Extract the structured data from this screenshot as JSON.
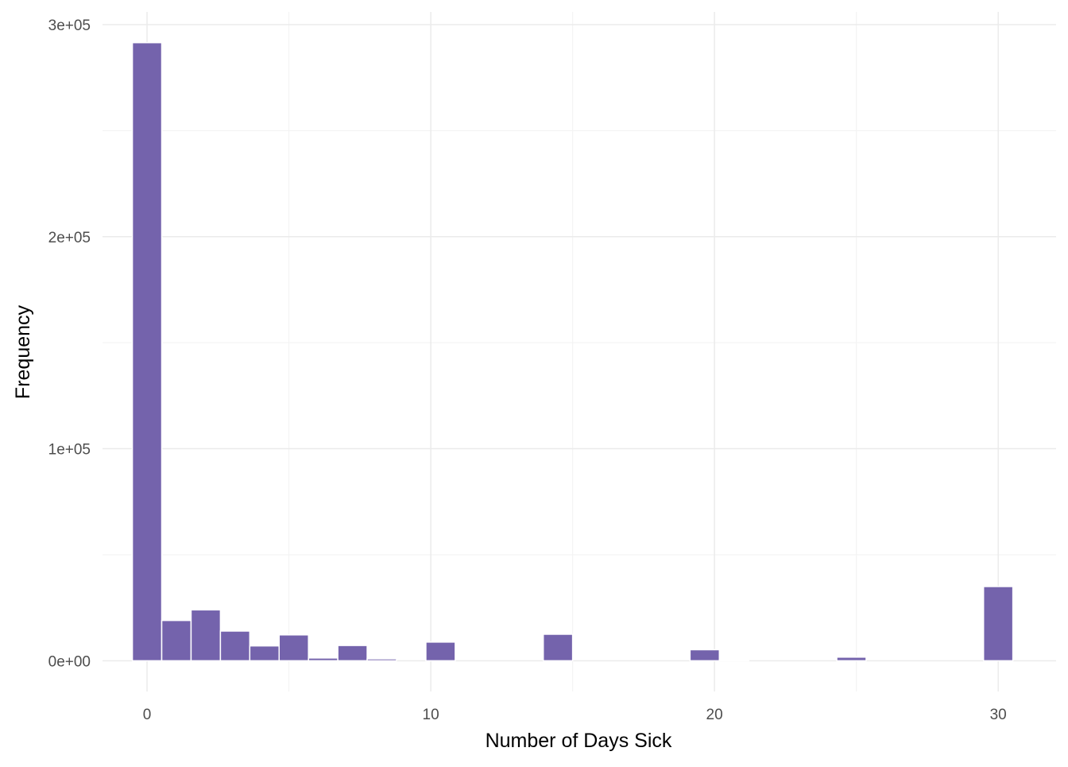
{
  "chart_data": {
    "type": "bar",
    "subtype": "histogram",
    "title": "",
    "xlabel": "Number of Days Sick",
    "ylabel": "Frequency",
    "bin_width": 1.0345,
    "bins": [
      {
        "center": 0,
        "count": 291500
      },
      {
        "center": 1.0345,
        "count": 19000
      },
      {
        "center": 2.069,
        "count": 24000
      },
      {
        "center": 3.1034,
        "count": 14000
      },
      {
        "center": 4.1379,
        "count": 7000
      },
      {
        "center": 5.1724,
        "count": 12200
      },
      {
        "center": 6.2069,
        "count": 1300
      },
      {
        "center": 7.2414,
        "count": 7200
      },
      {
        "center": 8.2759,
        "count": 900
      },
      {
        "center": 10.3448,
        "count": 8800
      },
      {
        "center": 14.4828,
        "count": 12500
      },
      {
        "center": 19.6552,
        "count": 5200
      },
      {
        "center": 20.6897,
        "count": 500
      },
      {
        "center": 24.8276,
        "count": 1700
      },
      {
        "center": 30,
        "count": 35000
      }
    ],
    "xlim": [
      -1.57,
      32.04
    ],
    "ylim": [
      -14500,
      306000
    ],
    "x_ticks": [
      0,
      10,
      20,
      30
    ],
    "x_tick_labels": [
      "0",
      "10",
      "20",
      "30"
    ],
    "y_ticks": [
      0,
      100000,
      200000,
      300000
    ],
    "y_tick_labels": [
      "0e+00",
      "1e+05",
      "2e+05",
      "3e+05"
    ],
    "bar_color": "#7463AC",
    "bar_outline": "#ffffff",
    "grid": true,
    "legend": "none"
  }
}
